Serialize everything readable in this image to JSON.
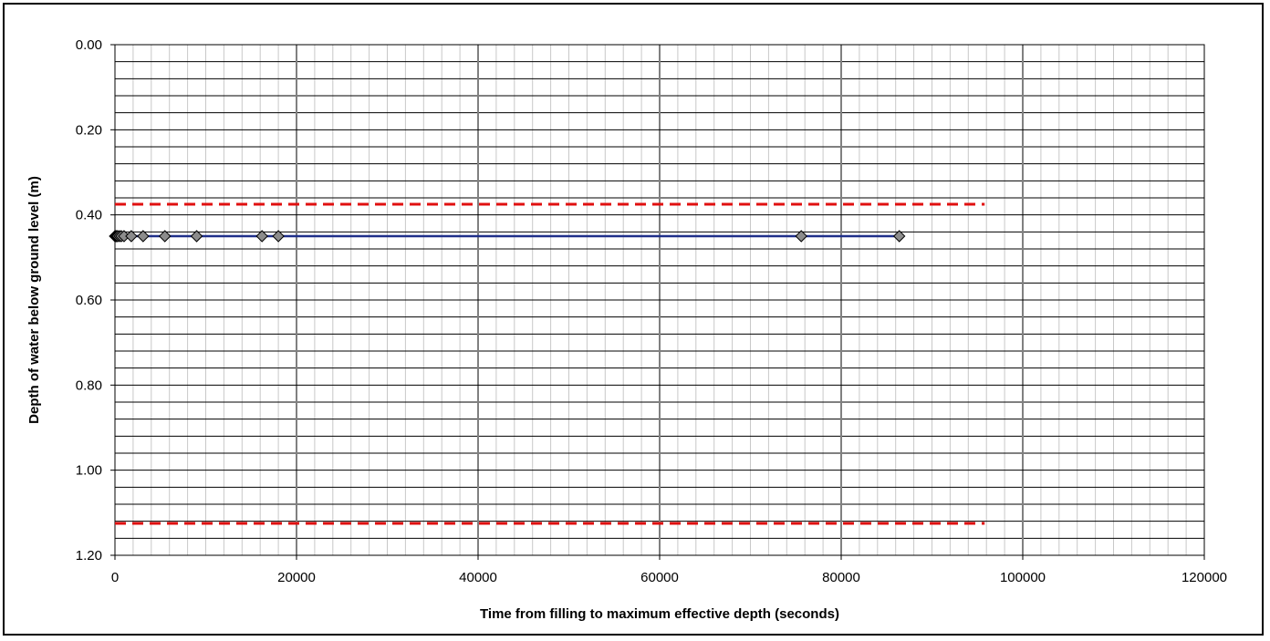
{
  "chart_data": {
    "type": "scatter",
    "title": "",
    "xlabel": "Time from filling to maximum effective depth (seconds)",
    "ylabel": "Depth of water below ground level (m)",
    "xlim": [
      0,
      120000
    ],
    "ylim": [
      0,
      1.2
    ],
    "y_inverted": true,
    "grid": true,
    "x_ticks": [
      "0",
      "20000",
      "40000",
      "60000",
      "80000",
      "100000",
      "120000"
    ],
    "y_ticks": [
      "0.00",
      "0.20",
      "0.40",
      "0.60",
      "0.80",
      "1.00",
      "1.20"
    ],
    "series": [
      {
        "type": "line",
        "line_color": "#1f2f8a",
        "marker": "diamond",
        "marker_color": "#8c8c8c",
        "x": [
          0,
          100,
          200,
          300,
          500,
          700,
          1000,
          1800,
          3100,
          5500,
          9000,
          16200,
          18000,
          75600,
          86400
        ],
        "y": [
          0.45,
          0.45,
          0.45,
          0.45,
          0.45,
          0.45,
          0.45,
          0.45,
          0.45,
          0.45,
          0.45,
          0.45,
          0.45,
          0.45,
          0.45
        ]
      },
      {
        "type": "line",
        "style": "dashed",
        "line_color": "#e01010",
        "x": [
          0,
          95800
        ],
        "y": [
          0.375,
          0.375
        ]
      },
      {
        "type": "line",
        "style": "dashed",
        "line_color": "#e01010",
        "x": [
          0,
          95800
        ],
        "y": [
          1.125,
          1.125
        ]
      }
    ]
  }
}
